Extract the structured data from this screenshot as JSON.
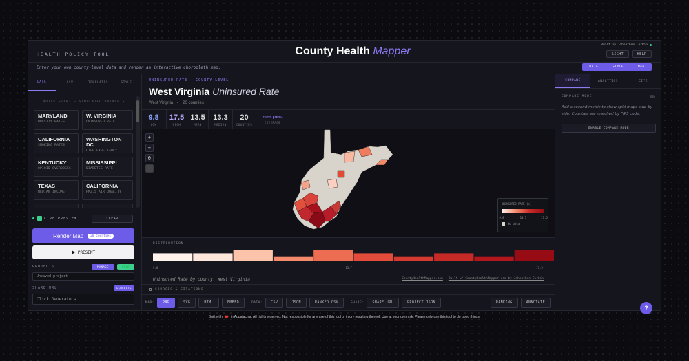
{
  "header": {
    "kicker": "HEALTH POLICY TOOL",
    "title_main": "County Health",
    "title_accent": "Mapper",
    "credit": "Built by Johnathon Corbin",
    "buttons": [
      "LIGHT",
      "HELP"
    ],
    "tagline": "Enter your own county-level data and render an interactive choropleth map.",
    "nav": [
      "DATA",
      "STYLE",
      "MAP"
    ]
  },
  "left_panel": {
    "tabs": [
      "DATA",
      "CSV",
      "TEMPLATES",
      "STYLE"
    ],
    "quick_start": "QUICK START — SIMULATED DATASETS",
    "datasets": [
      {
        "name": "MARYLAND",
        "metric": "OBESITY RATES"
      },
      {
        "name": "W. VIRGINIA",
        "metric": "UNINSURED RATE"
      },
      {
        "name": "CALIFORNIA",
        "metric": "SMOKING RATES"
      },
      {
        "name": "WASHINGTON DC",
        "metric": "LIFE EXPECTANCY"
      },
      {
        "name": "KENTUCKY",
        "metric": "OPIOID OVERDOSES"
      },
      {
        "name": "MISSISSIPPI",
        "metric": "DIABETES RATE"
      },
      {
        "name": "TEXAS",
        "metric": "MEDIAN INCOME"
      },
      {
        "name": "CALIFORNIA",
        "metric": "PM2.5 AIR QUALITY"
      },
      {
        "name": "OHIO",
        "metric": null
      },
      {
        "name": "NEW YORK",
        "metric": null
      }
    ],
    "live_preview": "LIVE PREVIEW",
    "clear": "CLEAR",
    "render": "Render Map",
    "render_badge": "20 counties",
    "present": "PRESENT",
    "projects_label": "PROJECTS",
    "manage": "MANAGE",
    "save": "SAVE",
    "project_name": "Unsaved project",
    "share_label": "SHARE URL",
    "generate": "GENERATE",
    "share_placeholder": "Click Generate →"
  },
  "map_panel": {
    "kicker": "UNINSURED RATE — COUNTY LEVEL",
    "title_state": "West Virginia",
    "title_metric": "Uninsured Rate",
    "breadcrumb_state": "West Virginia",
    "breadcrumb_count": "20 counties",
    "stats": [
      {
        "value": 9.8,
        "label": "LOW"
      },
      {
        "value": 17.5,
        "label": "HIGH"
      },
      {
        "value": 13.5,
        "label": "MEAN"
      },
      {
        "value": 13.3,
        "label": "MEDIAN"
      },
      {
        "value": 20,
        "label": "COUNTIES"
      },
      {
        "value": "20/55 (36%)",
        "label": "COVERAGE"
      }
    ],
    "zoom": [
      "+",
      "−",
      "0"
    ],
    "legend": {
      "title": "UNINSURED RATE (%)",
      "ticks": [
        9.8,
        13.7,
        17.5
      ],
      "no_data": "No data"
    },
    "distribution": {
      "title": "DISTRIBUTION",
      "counts": [
        2,
        2,
        3,
        1,
        3,
        2,
        1,
        2,
        1,
        3
      ],
      "bar_colors": [
        "#fff3ee",
        "#fde6dc",
        "#fcc3ab",
        "#f38a6c",
        "#ec6d52",
        "#e34c3a",
        "#d6392f",
        "#c52a27",
        "#b3161d",
        "#960b14"
      ],
      "ticks": [
        9.8,
        13.7,
        17.5
      ]
    },
    "caption": "Uninsured Rate by county, West Virginia.",
    "link1": "CountyHealthMapper.com",
    "link2": "Built w/ CountyHealthMapper.com by Johnathon Corbin",
    "sources": "SOURCES & CITATIONS"
  },
  "toolbar": {
    "groups": [
      {
        "label": "MAP:",
        "buttons": [
          "PNG",
          "SVG",
          "HTML",
          "EMBED"
        ]
      },
      {
        "label": "DATA:",
        "buttons": [
          "CSV",
          "JSON",
          "RANKED CSV"
        ]
      },
      {
        "label": "SHARE:",
        "buttons": [
          "SHARE URL",
          "PROJECT JSON"
        ]
      }
    ],
    "extra": [
      "RANKING",
      "ANNOTATE"
    ]
  },
  "right_panel": {
    "tabs": [
      "COMPARE",
      "ANALYTICS",
      "CITE"
    ],
    "heading": "COMPARE MODE",
    "esc": "ESC",
    "text": "Add a second metric to show split maps side-by-side. Counties are matched by FIPS code.",
    "button": "ENABLE COMPARE MODE"
  },
  "footer": {
    "before": "Built with",
    "after": "in Appalachia. All rights reserved. Not responsible for any use of this tool or injury resulting thereof. Use at your own risk. Please only use this tool to do good things."
  },
  "help": "?"
}
